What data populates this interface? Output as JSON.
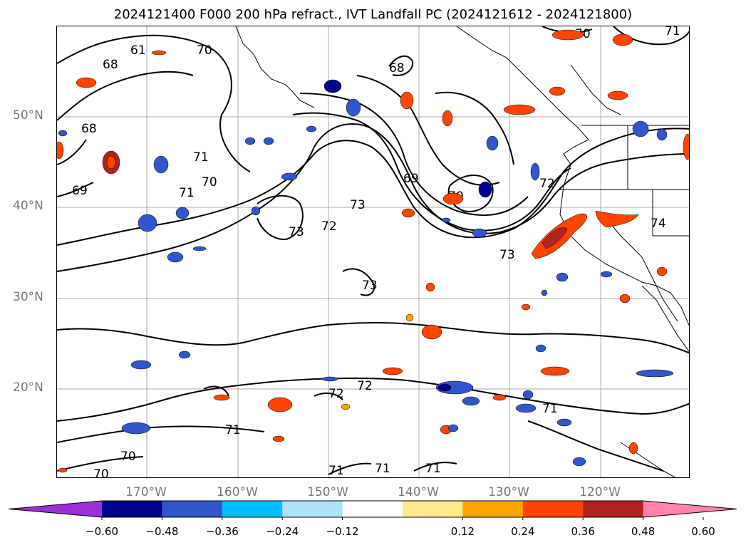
{
  "title": "2024121400 F000 200 hPa refract., IVT Landfall PC (2024121612 - 2024121800)",
  "lat_labels": [
    "50°N",
    "40°N",
    "30°N",
    "20°N"
  ],
  "lon_labels": [
    "170°W",
    "160°W",
    "150°W",
    "140°W",
    "130°W",
    "120°W"
  ],
  "colorbar": {
    "ticks": [
      "−0.60",
      "−0.48",
      "−0.36",
      "−0.24",
      "−0.12",
      "0.12",
      "0.24",
      "0.36",
      "0.48",
      "0.60"
    ],
    "colors": [
      "#9b30d9",
      "#00008b",
      "#3355cc",
      "#00bfff",
      "#aee2fb",
      "#ffffff",
      "#ffe98a",
      "#ffa500",
      "#ff4500",
      "#b22222",
      "#ff85b0"
    ],
    "extend": "both"
  },
  "contour_labels": [
    {
      "text": "70"
    },
    {
      "text": "61"
    },
    {
      "text": "68"
    },
    {
      "text": "68"
    },
    {
      "text": "69"
    },
    {
      "text": "71"
    },
    {
      "text": "70"
    },
    {
      "text": "71"
    },
    {
      "text": "73"
    },
    {
      "text": "72"
    },
    {
      "text": "73"
    },
    {
      "text": "69"
    },
    {
      "text": "68"
    },
    {
      "text": "72"
    },
    {
      "text": "73"
    },
    {
      "text": "70"
    },
    {
      "text": "73"
    },
    {
      "text": "74"
    },
    {
      "text": "72"
    },
    {
      "text": "72"
    },
    {
      "text": "71"
    },
    {
      "text": "71"
    },
    {
      "text": "70"
    },
    {
      "text": "70"
    },
    {
      "text": "71"
    },
    {
      "text": "71"
    },
    {
      "text": "71"
    },
    {
      "text": "70"
    },
    {
      "text": "71"
    }
  ]
}
